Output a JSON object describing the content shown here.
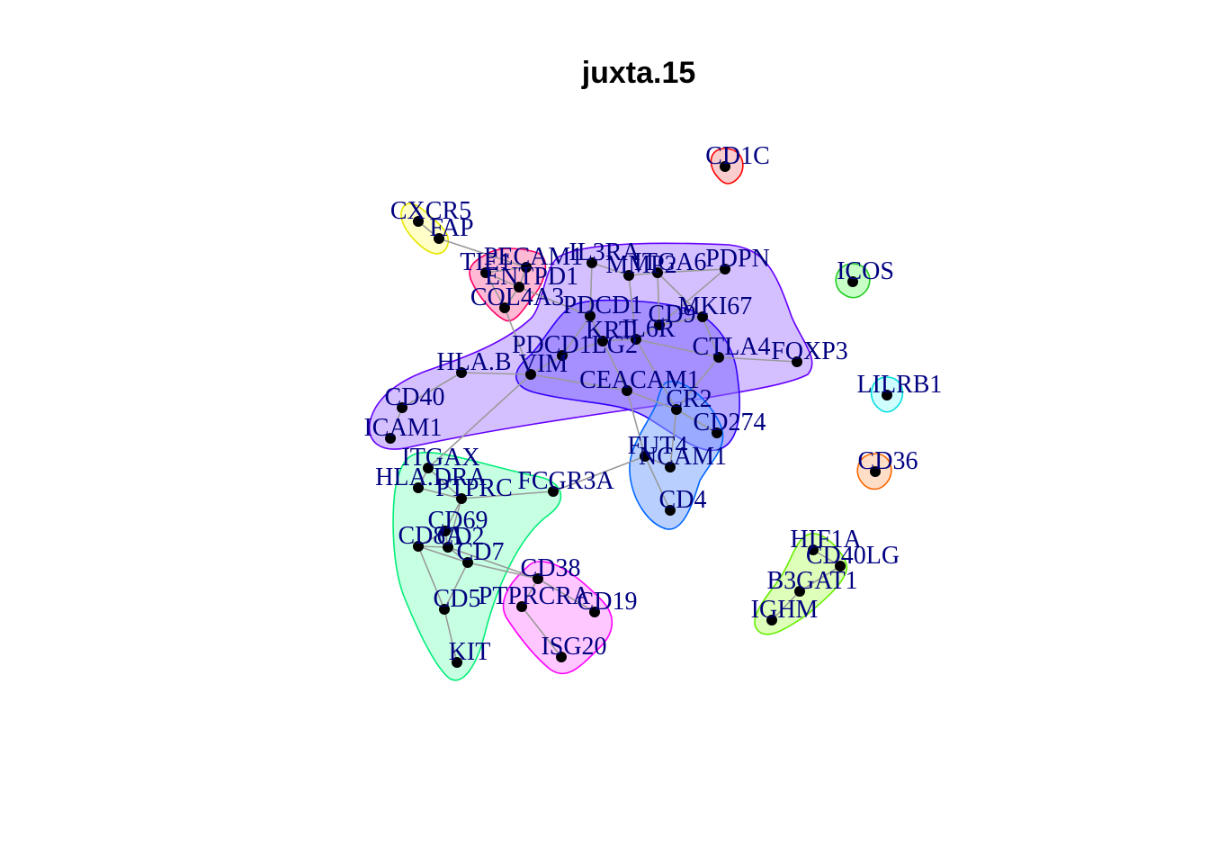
{
  "title": "juxta.15",
  "nodes": [
    {
      "id": "CD1C",
      "label": "CD1C"
    },
    {
      "id": "CXCR5",
      "label": "CXCR5"
    },
    {
      "id": "FAP",
      "label": "FAP"
    },
    {
      "id": "ICOS",
      "label": "ICOS"
    },
    {
      "id": "TIE1",
      "label": "TIE1"
    },
    {
      "id": "PECAM1",
      "label": "PECAM1"
    },
    {
      "id": "ENTPD1",
      "label": "ENTPD1"
    },
    {
      "id": "COL4A3",
      "label": "COL4A3"
    },
    {
      "id": "IL3RA",
      "label": "IL3RA"
    },
    {
      "id": "MMP2",
      "label": "MMP2"
    },
    {
      "id": "ITGA6",
      "label": "ITGA6"
    },
    {
      "id": "PDPN",
      "label": "PDPN"
    },
    {
      "id": "PDCD1",
      "label": "PDCD1"
    },
    {
      "id": "MKI67",
      "label": "MKI67"
    },
    {
      "id": "CD9",
      "label": "CD9"
    },
    {
      "id": "KRT",
      "label": "KRT"
    },
    {
      "id": "IL6R",
      "label": "IL6R"
    },
    {
      "id": "PDCD1LG2",
      "label": "PDCD1LG2"
    },
    {
      "id": "CTLA4",
      "label": "CTLA4"
    },
    {
      "id": "FOXP3",
      "label": "FOXP3"
    },
    {
      "id": "HLA.B",
      "label": "HLA.B"
    },
    {
      "id": "VIM",
      "label": "VIM"
    },
    {
      "id": "CEACAM1",
      "label": "CEACAM1"
    },
    {
      "id": "LILRB1",
      "label": "LILRB1"
    },
    {
      "id": "CD40",
      "label": "CD40"
    },
    {
      "id": "CR2",
      "label": "CR2"
    },
    {
      "id": "CD274",
      "label": "CD274"
    },
    {
      "id": "ICAM1",
      "label": "ICAM1"
    },
    {
      "id": "FUT4",
      "label": "FUT4"
    },
    {
      "id": "NCAM1",
      "label": "NCAM1"
    },
    {
      "id": "CD36",
      "label": "CD36"
    },
    {
      "id": "ITGAX",
      "label": "ITGAX"
    },
    {
      "id": "HLA.DRA",
      "label": "HLA.DRA"
    },
    {
      "id": "PTPRC",
      "label": "PTPRC"
    },
    {
      "id": "FCGR3A",
      "label": "FCGR3A"
    },
    {
      "id": "CD4",
      "label": "CD4"
    },
    {
      "id": "CD69",
      "label": "CD69"
    },
    {
      "id": "CD8A",
      "label": "CD8A"
    },
    {
      "id": "CD2",
      "label": "CD2"
    },
    {
      "id": "CD7",
      "label": "CD7"
    },
    {
      "id": "HIF1A",
      "label": "HIF1A"
    },
    {
      "id": "CD40LG",
      "label": "CD40LG"
    },
    {
      "id": "CD38",
      "label": "CD38"
    },
    {
      "id": "B3GAT1",
      "label": "B3GAT1"
    },
    {
      "id": "CD5",
      "label": "CD5"
    },
    {
      "id": "PTPRCRA",
      "label": "PTPRCRA"
    },
    {
      "id": "CD19",
      "label": "CD19"
    },
    {
      "id": "IGHM",
      "label": "IGHM"
    },
    {
      "id": "ISG20",
      "label": "ISG20"
    },
    {
      "id": "KIT",
      "label": "KIT"
    }
  ],
  "edges": [
    [
      "CXCR5",
      "FAP"
    ],
    [
      "FAP",
      "PECAM1"
    ],
    [
      "TIE1",
      "PECAM1"
    ],
    [
      "PECAM1",
      "ENTPD1"
    ],
    [
      "ENTPD1",
      "COL4A3"
    ],
    [
      "COL4A3",
      "TIE1"
    ],
    [
      "TIE1",
      "ENTPD1"
    ],
    [
      "ENTPD1",
      "PDCD1"
    ],
    [
      "COL4A3",
      "VIM"
    ],
    [
      "IL3RA",
      "MMP2"
    ],
    [
      "IL3RA",
      "PDCD1"
    ],
    [
      "MMP2",
      "ITGA6"
    ],
    [
      "ITGA6",
      "PDPN"
    ],
    [
      "ITGA6",
      "CD9"
    ],
    [
      "PDPN",
      "CD9"
    ],
    [
      "MMP2",
      "IL6R"
    ],
    [
      "ITGA6",
      "MKI67"
    ],
    [
      "CD9",
      "MKI67"
    ],
    [
      "PDCD1",
      "KRT"
    ],
    [
      "KRT",
      "IL6R"
    ],
    [
      "IL6R",
      "CD9"
    ],
    [
      "IL6R",
      "CTLA4"
    ],
    [
      "CTLA4",
      "FOXP3"
    ],
    [
      "CTLA4",
      "MKI67"
    ],
    [
      "PDCD1",
      "PDCD1LG2"
    ],
    [
      "PDCD1LG2",
      "VIM"
    ],
    [
      "PDCD1LG2",
      "KRT"
    ],
    [
      "VIM",
      "HLA.B"
    ],
    [
      "VIM",
      "CEACAM1"
    ],
    [
      "KRT",
      "CEACAM1"
    ],
    [
      "CEACAM1",
      "CR2"
    ],
    [
      "CEACAM1",
      "FUT4"
    ],
    [
      "CR2",
      "CD274"
    ],
    [
      "CR2",
      "NCAM1"
    ],
    [
      "CR2",
      "CTLA4"
    ],
    [
      "FUT4",
      "NCAM1"
    ],
    [
      "FUT4",
      "CD4"
    ],
    [
      "IL6R",
      "CR2"
    ],
    [
      "HLA.B",
      "CD40"
    ],
    [
      "CD40",
      "ICAM1"
    ],
    [
      "VIM",
      "ITGAX"
    ],
    [
      "ITGAX",
      "HLA.DRA"
    ],
    [
      "ITGAX",
      "PTPRC"
    ],
    [
      "HLA.DRA",
      "PTPRC"
    ],
    [
      "PTPRC",
      "FCGR3A"
    ],
    [
      "FCGR3A",
      "FUT4"
    ],
    [
      "PTPRC",
      "CD69"
    ],
    [
      "PTPRC",
      "CD2"
    ],
    [
      "CD69",
      "CD8A"
    ],
    [
      "CD69",
      "CD2"
    ],
    [
      "CD8A",
      "CD2"
    ],
    [
      "CD2",
      "CD7"
    ],
    [
      "CD8A",
      "CD7"
    ],
    [
      "CD8A",
      "CD5"
    ],
    [
      "CD7",
      "CD5"
    ],
    [
      "CD7",
      "CD38"
    ],
    [
      "CD2",
      "CD38"
    ],
    [
      "CD38",
      "PTPRCRA"
    ],
    [
      "CD38",
      "CD19"
    ],
    [
      "PTPRCRA",
      "ISG20"
    ],
    [
      "CD5",
      "KIT"
    ],
    [
      "HIF1A",
      "CD40LG"
    ],
    [
      "CD40LG",
      "B3GAT1"
    ],
    [
      "B3GAT1",
      "IGHM"
    ]
  ],
  "groups": [
    {
      "name": "red",
      "color": "#ff0000",
      "fill": "#f4a4a4",
      "members": [
        "CD1C"
      ]
    },
    {
      "name": "yellow",
      "color": "#e6e600",
      "fill": "#ffff99",
      "members": [
        "CXCR5",
        "FAP"
      ]
    },
    {
      "name": "green",
      "color": "#22cc22",
      "fill": "#99ff99",
      "members": [
        "ICOS"
      ]
    },
    {
      "name": "crimson",
      "color": "#ff0066",
      "fill": "#ff7fb2",
      "members": [
        "TIE1",
        "PECAM1",
        "ENTPD1",
        "COL4A3"
      ]
    },
    {
      "name": "purple",
      "color": "#6600ff",
      "fill": "#b38cff",
      "members": [
        "IL3RA",
        "MMP2",
        "ITGA6",
        "PDPN",
        "MKI67",
        "FOXP3",
        "ICAM1",
        "CD40",
        "HLA.B"
      ]
    },
    {
      "name": "indigo",
      "color": "#3300ff",
      "fill": "#7f66ff",
      "members": [
        "PDCD1",
        "CD9",
        "CTLA4",
        "CD274",
        "CEACAM1",
        "VIM"
      ]
    },
    {
      "name": "cyan",
      "color": "#00dddd",
      "fill": "#a8ffff",
      "members": [
        "LILRB1"
      ]
    },
    {
      "name": "orange",
      "color": "#ff6600",
      "fill": "#ffc299",
      "members": [
        "CD36"
      ]
    },
    {
      "name": "blue",
      "color": "#0066ff",
      "fill": "#80aaff",
      "members": [
        "CR2",
        "CD274",
        "CD4",
        "FUT4"
      ]
    },
    {
      "name": "seagreen",
      "color": "#00ee77",
      "fill": "#99ffcc",
      "members": [
        "ITGAX",
        "FCGR3A",
        "KIT",
        "HLA.DRA"
      ]
    },
    {
      "name": "lime",
      "color": "#66ee00",
      "fill": "#c2ff80",
      "members": [
        "HIF1A",
        "CD40LG",
        "IGHM"
      ]
    },
    {
      "name": "magenta",
      "color": "#ff00ff",
      "fill": "#ff99ff",
      "members": [
        "CD38",
        "CD19",
        "ISG20",
        "PTPRCRA"
      ]
    }
  ]
}
